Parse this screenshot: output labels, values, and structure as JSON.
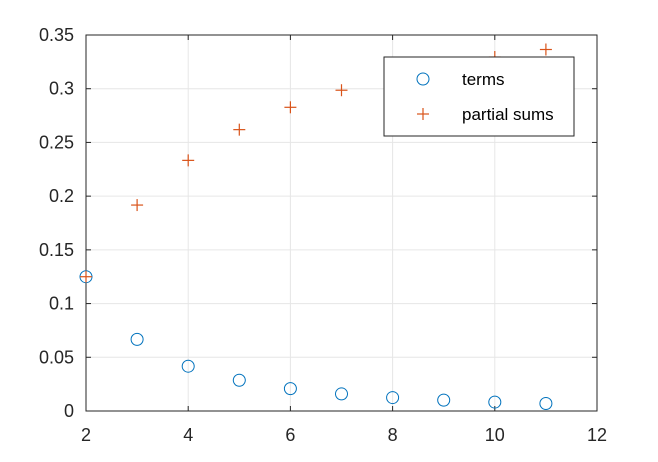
{
  "chart_data": {
    "type": "scatter",
    "xlim": [
      2,
      12
    ],
    "ylim": [
      0,
      0.35
    ],
    "x_ticks": [
      2,
      4,
      6,
      8,
      10,
      12
    ],
    "y_ticks": [
      0,
      0.05,
      0.1,
      0.15,
      0.2,
      0.25,
      0.3,
      0.35
    ],
    "x_tick_labels": [
      "2",
      "4",
      "6",
      "8",
      "10",
      "12"
    ],
    "y_tick_labels": [
      "0",
      "0.05",
      "0.1",
      "0.15",
      "0.2",
      "0.25",
      "0.3",
      "0.35"
    ],
    "grid": true,
    "legend_position": "top-right",
    "series": [
      {
        "name": "terms",
        "marker": "circle",
        "color": "#0072BD",
        "x": [
          2,
          3,
          4,
          5,
          6,
          7,
          8,
          9,
          10,
          11
        ],
        "y": [
          0.125,
          0.0667,
          0.0417,
          0.0286,
          0.0208,
          0.0159,
          0.0125,
          0.0101,
          0.0083,
          0.007
        ]
      },
      {
        "name": "partial sums",
        "marker": "plus",
        "color": "#D95319",
        "x": [
          2,
          3,
          4,
          5,
          6,
          7,
          8,
          9,
          10,
          11
        ],
        "y": [
          0.125,
          0.1917,
          0.2333,
          0.2619,
          0.2827,
          0.2986,
          0.3111,
          0.3212,
          0.3295,
          0.3365
        ]
      }
    ]
  }
}
